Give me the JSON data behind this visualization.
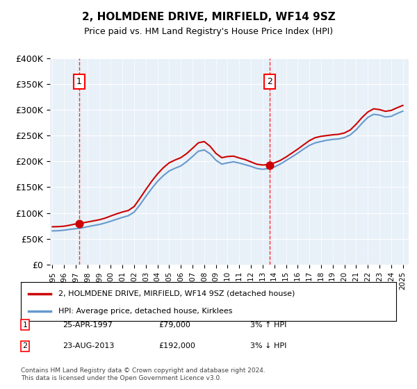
{
  "title": "2, HOLMDENE DRIVE, MIRFIELD, WF14 9SZ",
  "subtitle": "Price paid vs. HM Land Registry's House Price Index (HPI)",
  "property_label": "2, HOLMDENE DRIVE, MIRFIELD, WF14 9SZ (detached house)",
  "hpi_label": "HPI: Average price, detached house, Kirklees",
  "transaction1_date": "25-APR-1997",
  "transaction1_price": 79000,
  "transaction1_label": "3% ↑ HPI",
  "transaction2_date": "23-AUG-2013",
  "transaction2_price": 192000,
  "transaction2_label": "3% ↓ HPI",
  "footer": "Contains HM Land Registry data © Crown copyright and database right 2024.\nThis data is licensed under the Open Government Licence v3.0.",
  "bg_color": "#e8f0f8",
  "line_color_property": "#cc0000",
  "line_color_hpi": "#6699cc",
  "ylim": [
    0,
    400000
  ],
  "yticks": [
    0,
    50000,
    100000,
    150000,
    200000,
    250000,
    300000,
    350000,
    400000
  ],
  "ytick_labels": [
    "£0",
    "£50K",
    "£100K",
    "£150K",
    "£200K",
    "£250K",
    "£300K",
    "£350K",
    "£400K"
  ]
}
